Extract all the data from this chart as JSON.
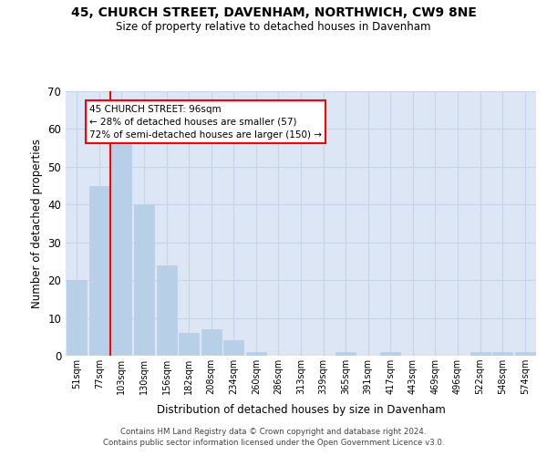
{
  "title1": "45, CHURCH STREET, DAVENHAM, NORTHWICH, CW9 8NE",
  "title2": "Size of property relative to detached houses in Davenham",
  "xlabel": "Distribution of detached houses by size in Davenham",
  "ylabel": "Number of detached properties",
  "footer1": "Contains HM Land Registry data © Crown copyright and database right 2024.",
  "footer2": "Contains public sector information licensed under the Open Government Licence v3.0.",
  "categories": [
    "51sqm",
    "77sqm",
    "103sqm",
    "130sqm",
    "156sqm",
    "182sqm",
    "208sqm",
    "234sqm",
    "260sqm",
    "286sqm",
    "313sqm",
    "339sqm",
    "365sqm",
    "391sqm",
    "417sqm",
    "443sqm",
    "469sqm",
    "496sqm",
    "522sqm",
    "548sqm",
    "574sqm"
  ],
  "values": [
    20,
    45,
    58,
    40,
    24,
    6,
    7,
    4,
    1,
    0,
    0,
    0,
    1,
    0,
    1,
    0,
    0,
    0,
    1,
    1,
    1
  ],
  "bar_color": "#b8cfe8",
  "bar_edge_color": "#b8cfe8",
  "grid_color": "#c8d4e8",
  "background_color": "#dce6f5",
  "vline_x": 1.5,
  "vline_color": "red",
  "annotation_box_text": "45 CHURCH STREET: 96sqm\n← 28% of detached houses are smaller (57)\n72% of semi-detached houses are larger (150) →",
  "ylim": [
    0,
    70
  ],
  "yticks": [
    0,
    10,
    20,
    30,
    40,
    50,
    60,
    70
  ]
}
